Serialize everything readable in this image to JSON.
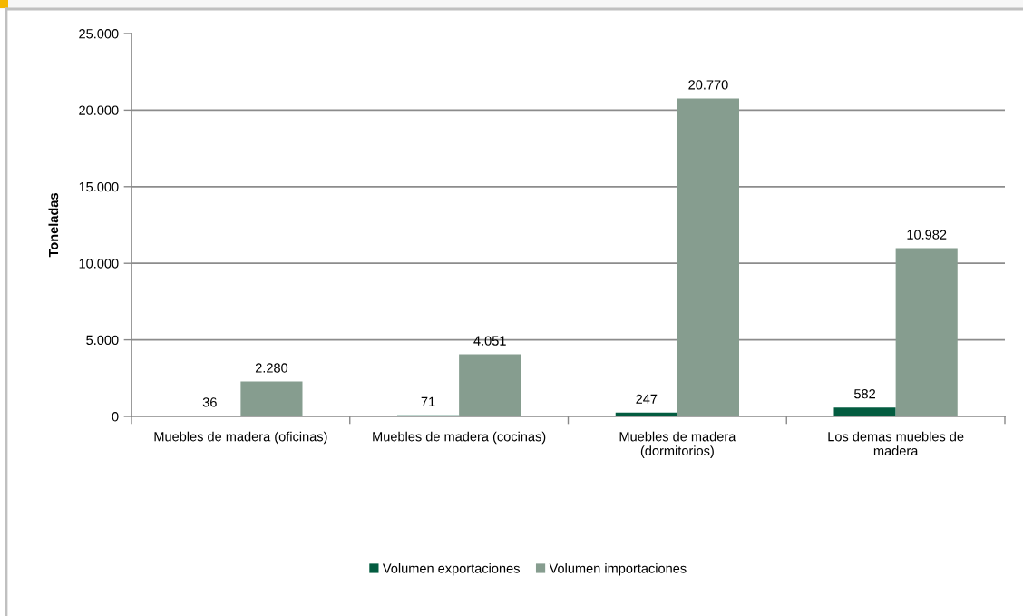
{
  "chart_data": {
    "type": "bar",
    "categories": [
      "Muebles de madera (oficinas)",
      "Muebles de madera (cocinas)",
      "Muebles de madera\n(dormitorios)",
      "Los demas muebles de\nmadera"
    ],
    "series": [
      {
        "name": "Volumen exportaciones",
        "color": "#035c40",
        "values": [
          36,
          71,
          247,
          582
        ],
        "value_labels": [
          "36",
          "71",
          "247",
          "582"
        ]
      },
      {
        "name": "Volumen importaciones",
        "color": "#869d8f",
        "values": [
          2280,
          4051,
          20770,
          10982
        ],
        "value_labels": [
          "2.280",
          "4.051",
          "20.770",
          "10.982"
        ]
      }
    ],
    "ylabel": "Toneladas",
    "ylim": [
      0,
      25000
    ],
    "yticks": [
      0,
      {
        "value": 5000,
        "label": "5.000"
      },
      {
        "value": 10000,
        "label": "10.000"
      },
      {
        "value": 15000,
        "label": "15.000"
      },
      {
        "value": 20000,
        "label": "20.000"
      },
      {
        "value": 25000,
        "label": "25.000"
      }
    ],
    "grid": "y",
    "legend": "bottom"
  }
}
